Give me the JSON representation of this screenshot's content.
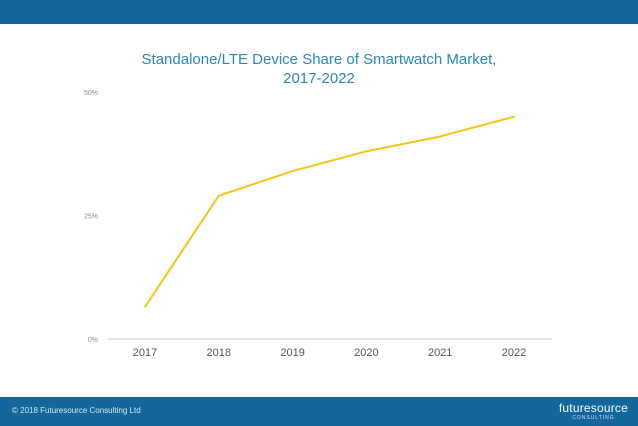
{
  "colors": {
    "header_bar": "#13679b",
    "footer_bar": "#13679b",
    "title": "#2a86bd",
    "line": "#f5c518",
    "axis": "#c8c8c8",
    "tick_text": "#555555"
  },
  "chart_data": {
    "type": "line",
    "title_lines": [
      "Standalone/LTE Device Share of Smartwatch Market,",
      "2017-2022"
    ],
    "categories": [
      "2017",
      "2018",
      "2019",
      "2020",
      "2021",
      "2022"
    ],
    "series": [
      {
        "values": [
          6.5,
          29,
          34,
          38,
          41,
          45
        ]
      }
    ],
    "yticks": [
      "50%",
      "25%",
      "0%"
    ],
    "ylim": [
      0,
      50
    ],
    "grid": false,
    "legend": "none"
  },
  "footer": {
    "copyright": "© 2018 Futuresource Consulting Ltd",
    "logo_text": "futuresource",
    "logo_subtext": "CONSULTING"
  }
}
